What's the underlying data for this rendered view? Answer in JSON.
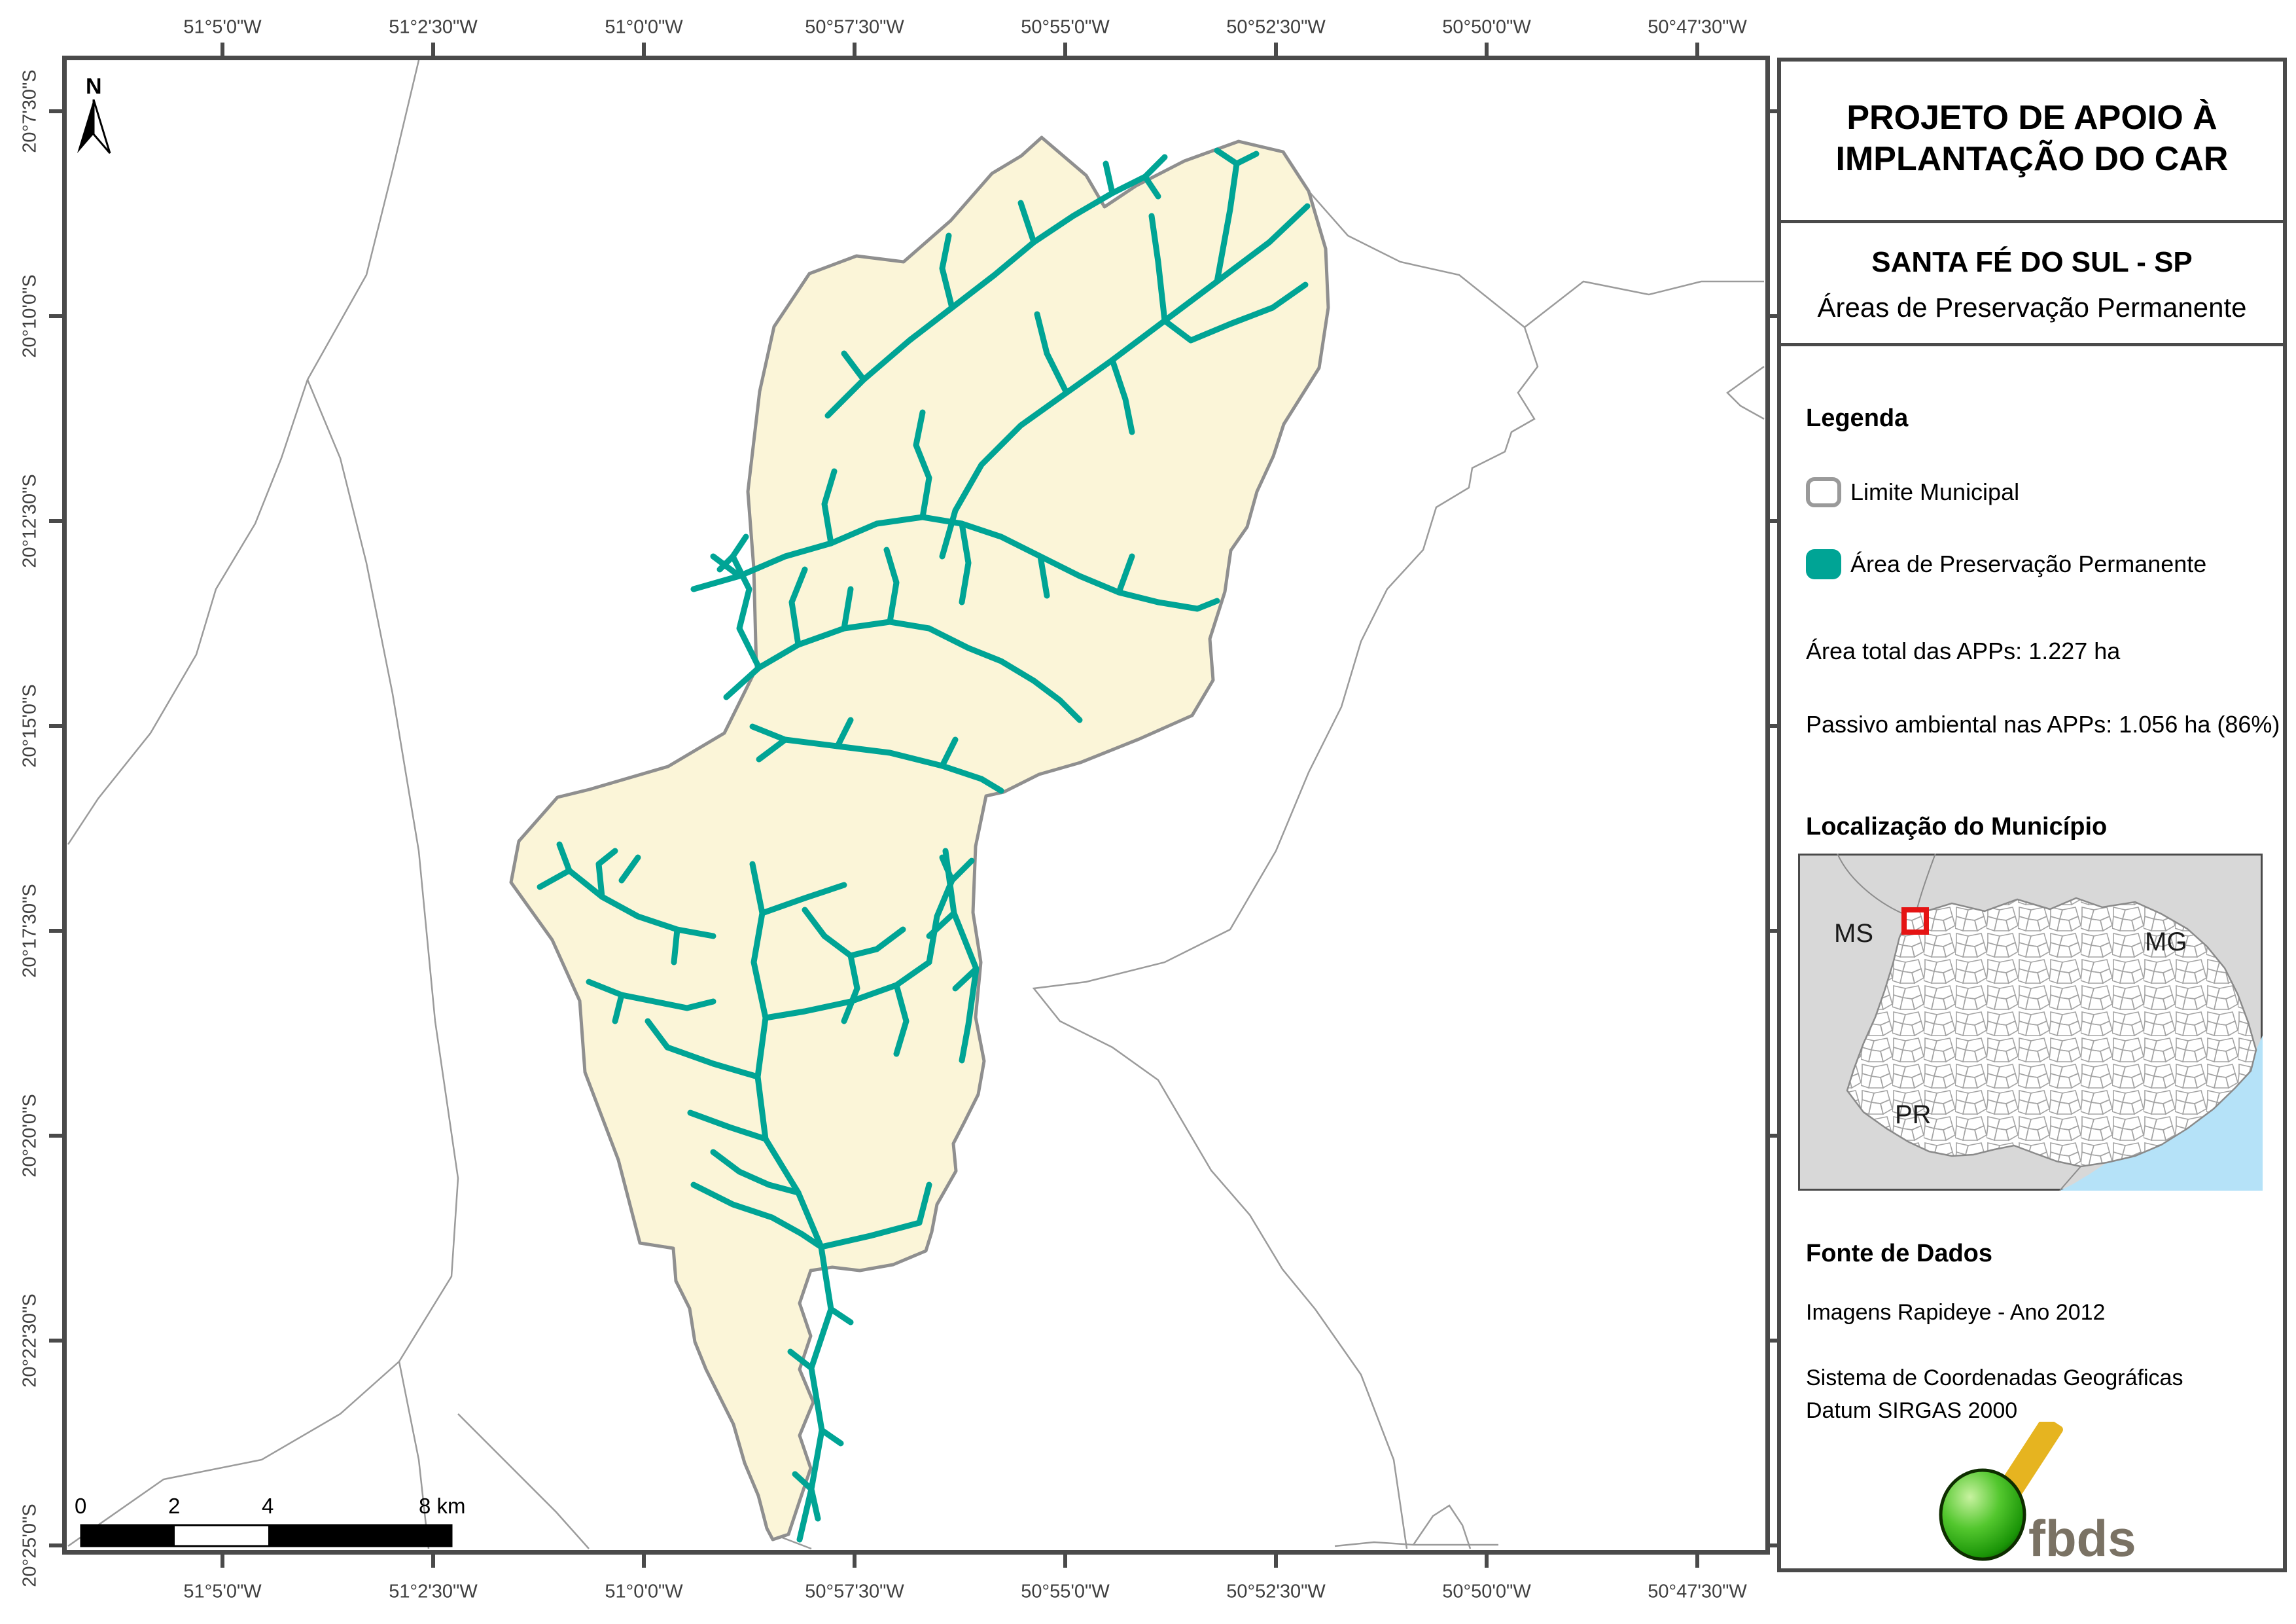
{
  "panel": {
    "title_line1": "PROJETO DE APOIO À",
    "title_line2": "IMPLANTAÇÃO DO CAR",
    "municipality": "SANTA FÉ DO SUL - SP",
    "subject": "Áreas de Preservação Permanente"
  },
  "legend": {
    "heading": "Legenda",
    "items": [
      {
        "label": "Limite Municipal",
        "swatch": "limite"
      },
      {
        "label": "Área de Preservação Permanente",
        "swatch": "app"
      }
    ]
  },
  "stats": [
    "Área total das APPs: 1.227 ha",
    "Passivo ambiental nas APPs: 1.056 ha (86%)"
  ],
  "location": {
    "heading": "Localização do Município",
    "state_labels": [
      "MS",
      "MG",
      "PR"
    ]
  },
  "fonte": {
    "heading": "Fonte de Dados",
    "lines": [
      "Imagens Rapideye - Ano 2012",
      "Sistema de Coordenadas Geográficas",
      "Datum SIRGAS 2000"
    ]
  },
  "logo": {
    "text": "fbds"
  },
  "north": {
    "label": "N"
  },
  "scalebar": {
    "labels": [
      "0",
      "2",
      "4",
      "8 km"
    ]
  },
  "axes": {
    "lon_labels": [
      "51°5'0\"W",
      "51°2'30\"W",
      "51°0'0\"W",
      "50°57'30\"W",
      "50°55'0\"W",
      "50°52'30\"W",
      "50°50'0\"W",
      "50°47'30\"W"
    ],
    "lat_labels": [
      "20°7'30\"S",
      "20°10'0\"S",
      "20°12'30\"S",
      "20°15'0\"S",
      "20°17'30\"S",
      "20°20'0\"S",
      "20°22'30\"S",
      "20°25'0\"S"
    ]
  },
  "colors": {
    "accent_teal": "#00a495",
    "municipality_fill": "#fbf5d8",
    "municipality_border": "#8f8f8f",
    "frame": "#4a4a4a",
    "neighbor_line": "#9b9b9b",
    "inset_background": "#d8d8d8",
    "ocean": "#b5e2f8",
    "locator_red": "#e51414",
    "logo_green": "#2eb212",
    "logo_yellow": "#e6b420",
    "logo_text": "#7a7264"
  }
}
